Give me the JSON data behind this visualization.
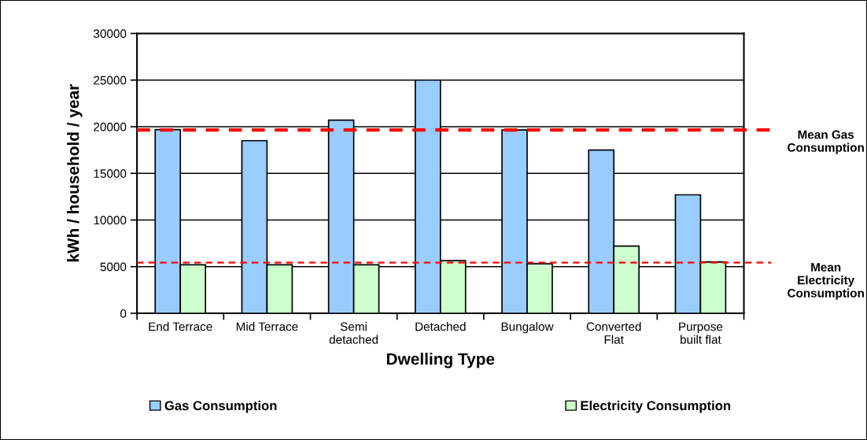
{
  "chart_data": {
    "type": "bar",
    "categories": [
      "End Terrace",
      "Mid Terrace",
      "Semi\ndetached",
      "Detached",
      "Bungalow",
      "Converted\nFlat",
      "Purpose\nbuilt flat"
    ],
    "series": [
      {
        "name": "Gas Consumption",
        "color": "#99ccff",
        "values": [
          19700,
          18500,
          20700,
          25000,
          19650,
          17500,
          12700
        ]
      },
      {
        "name": "Electricity Consumption",
        "color": "#ccffcc",
        "values": [
          5200,
          5200,
          5200,
          5650,
          5300,
          7200,
          5500
        ]
      }
    ],
    "xlabel": "Dwelling Type",
    "ylabel": "kWh / household / year",
    "ylim": [
      0,
      30000
    ],
    "yticks": [
      0,
      5000,
      10000,
      15000,
      20000,
      25000,
      30000
    ],
    "grid": "y",
    "legend": "bottom",
    "ref_lines": [
      {
        "axis": "y",
        "value": 19650,
        "label": "Mean Gas\nConsumption",
        "color": "#ff0000",
        "line_style": "dashed"
      },
      {
        "axis": "y",
        "value": 5430,
        "label": "Mean\nElectricity\nConsumption",
        "color": "#ff0000",
        "line_style": "dashed"
      }
    ]
  }
}
